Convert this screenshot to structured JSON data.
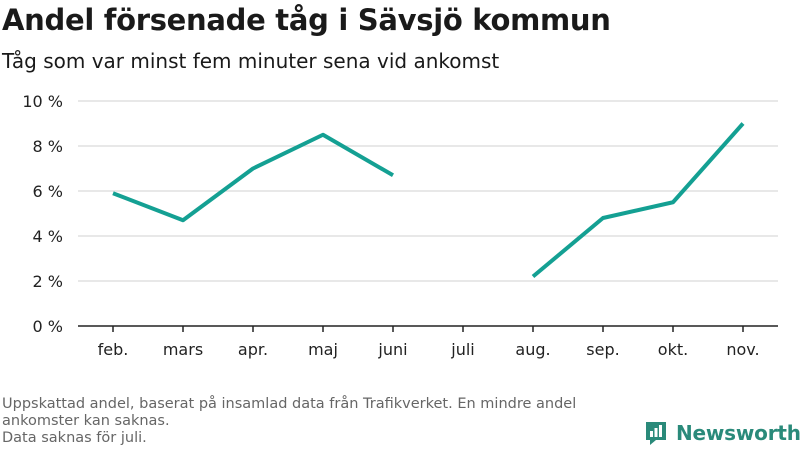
{
  "header": {
    "title": "Andel försenade tåg i Sävsjö kommun",
    "subtitle": "Tåg som var minst fem minuter sena vid ankomst"
  },
  "footer": {
    "note_1": "Uppskattad andel, baserat på insamlad data från Trafikverket. En mindre andel ankomster kan saknas.",
    "note_2": "Data saknas för juli.",
    "brand": "Newsworthy"
  },
  "colors": {
    "line": "#14a093",
    "grid": "#d9d9d9",
    "axis": "#222222",
    "brand": "#2a8a7a"
  },
  "chart_data": {
    "type": "line",
    "categories": [
      "feb.",
      "mars",
      "apr.",
      "maj",
      "juni",
      "juli",
      "aug.",
      "sep.",
      "okt.",
      "nov."
    ],
    "series": [
      {
        "values": [
          5.9,
          4.7,
          7.0,
          8.5,
          6.7,
          null,
          2.2,
          4.8,
          5.5,
          9.0
        ]
      }
    ],
    "y_ticks": [
      0,
      2,
      4,
      6,
      8,
      10
    ],
    "y_tick_labels": [
      "0 %",
      "2 %",
      "4 %",
      "6 %",
      "8 %",
      "10 %"
    ],
    "ylim": [
      0,
      10
    ],
    "grid": true,
    "legend": "none"
  }
}
